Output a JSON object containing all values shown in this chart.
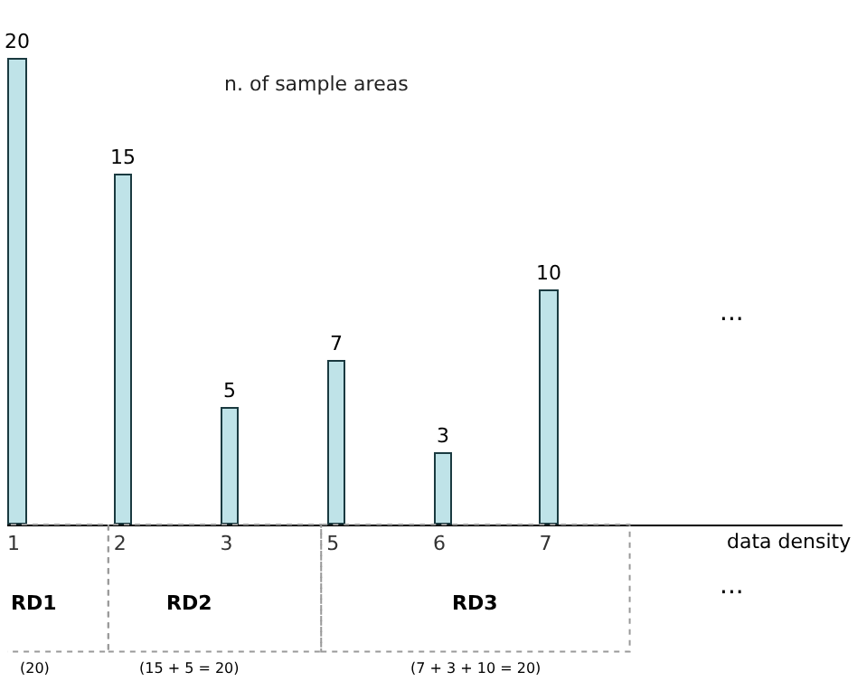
{
  "chart_data": {
    "type": "bar",
    "ylabel": "n. of sample areas",
    "categories": [
      "1",
      "2",
      "3",
      "5",
      "6",
      "7"
    ],
    "values": [
      20,
      15,
      5,
      7,
      3,
      10
    ],
    "color": "#bfe3e8",
    "data_labels": true,
    "legend": false,
    "tick_labels": "x",
    "annotations": [
      "data density",
      "...",
      "...",
      "RD1",
      "RD2",
      "RD3",
      "(20)",
      "(15 + 5 = 20)",
      "(7 + 3 + 10 = 20)"
    ]
  }
}
